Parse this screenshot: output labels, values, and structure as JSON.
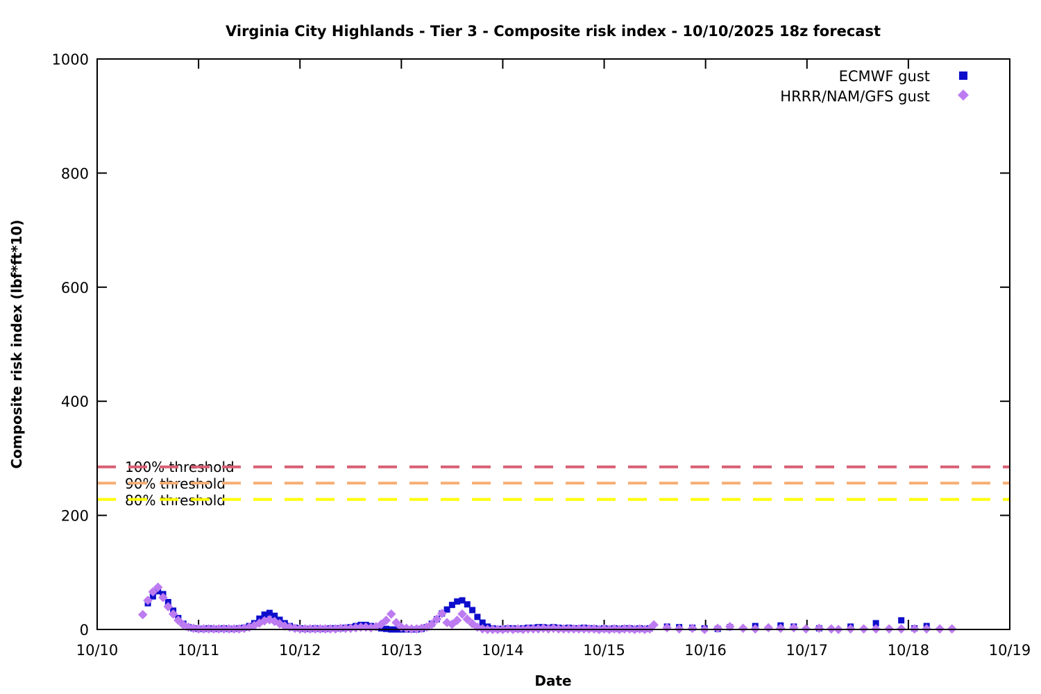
{
  "chart_data": {
    "type": "scatter",
    "title": "Virginia City Highlands - Tier 3 - Composite risk index - 10/10/2025 18z forecast",
    "xlabel": "Date",
    "ylabel": "Composite risk index (lbf*ft*10)",
    "x_tick_labels": [
      "10/10",
      "10/11",
      "10/12",
      "10/13",
      "10/14",
      "10/15",
      "10/16",
      "10/17",
      "10/18",
      "10/19"
    ],
    "y_ticks": [
      0,
      200,
      400,
      600,
      800,
      1000
    ],
    "ylim": [
      0,
      1000
    ],
    "x_range_days": [
      0,
      9
    ],
    "x_unit": "days after 10/10 00z",
    "grid": false,
    "legend_position": "top-right-inside",
    "series": [
      {
        "name": "ECMWF gust",
        "marker": "square",
        "color": "#0d0dcc",
        "points": [
          [
            0.5,
            46
          ],
          [
            0.55,
            58
          ],
          [
            0.6,
            67
          ],
          [
            0.65,
            62
          ],
          [
            0.7,
            48
          ],
          [
            0.75,
            33
          ],
          [
            0.8,
            20
          ],
          [
            0.85,
            10
          ],
          [
            0.9,
            4
          ],
          [
            0.95,
            2
          ],
          [
            1.0,
            1
          ],
          [
            1.05,
            1
          ],
          [
            1.1,
            2
          ],
          [
            1.15,
            1
          ],
          [
            1.2,
            1
          ],
          [
            1.25,
            2
          ],
          [
            1.3,
            1
          ],
          [
            1.35,
            1
          ],
          [
            1.4,
            2
          ],
          [
            1.45,
            3
          ],
          [
            1.5,
            6
          ],
          [
            1.55,
            11
          ],
          [
            1.6,
            19
          ],
          [
            1.65,
            26
          ],
          [
            1.7,
            29
          ],
          [
            1.75,
            24
          ],
          [
            1.8,
            17
          ],
          [
            1.85,
            11
          ],
          [
            1.9,
            6
          ],
          [
            1.95,
            3
          ],
          [
            2.0,
            2
          ],
          [
            2.05,
            1
          ],
          [
            2.1,
            1
          ],
          [
            2.15,
            2
          ],
          [
            2.2,
            1
          ],
          [
            2.25,
            1
          ],
          [
            2.3,
            2
          ],
          [
            2.35,
            2
          ],
          [
            2.4,
            2
          ],
          [
            2.45,
            3
          ],
          [
            2.5,
            4
          ],
          [
            2.55,
            6
          ],
          [
            2.6,
            8
          ],
          [
            2.65,
            8
          ],
          [
            2.7,
            6
          ],
          [
            2.75,
            4
          ],
          [
            2.8,
            2
          ],
          [
            2.85,
            1
          ],
          [
            2.9,
            0
          ],
          [
            2.95,
            0
          ],
          [
            3.0,
            0
          ],
          [
            3.05,
            0
          ],
          [
            3.1,
            0
          ],
          [
            3.15,
            0
          ],
          [
            3.2,
            1
          ],
          [
            3.25,
            4
          ],
          [
            3.3,
            10
          ],
          [
            3.35,
            18
          ],
          [
            3.4,
            28
          ],
          [
            3.45,
            35
          ],
          [
            3.5,
            43
          ],
          [
            3.55,
            49
          ],
          [
            3.6,
            51
          ],
          [
            3.65,
            44
          ],
          [
            3.7,
            34
          ],
          [
            3.75,
            22
          ],
          [
            3.8,
            12
          ],
          [
            3.85,
            5
          ],
          [
            3.9,
            2
          ],
          [
            3.95,
            1
          ],
          [
            4.0,
            1
          ],
          [
            4.05,
            2
          ],
          [
            4.1,
            2
          ],
          [
            4.15,
            1
          ],
          [
            4.2,
            2
          ],
          [
            4.25,
            3
          ],
          [
            4.3,
            3
          ],
          [
            4.35,
            4
          ],
          [
            4.4,
            4
          ],
          [
            4.45,
            3
          ],
          [
            4.5,
            4
          ],
          [
            4.55,
            3
          ],
          [
            4.6,
            2
          ],
          [
            4.65,
            3
          ],
          [
            4.7,
            2
          ],
          [
            4.75,
            2
          ],
          [
            4.8,
            3
          ],
          [
            4.85,
            2
          ],
          [
            4.9,
            2
          ],
          [
            4.95,
            1
          ],
          [
            5.0,
            2
          ],
          [
            5.05,
            1
          ],
          [
            5.1,
            2
          ],
          [
            5.15,
            1
          ],
          [
            5.2,
            2
          ],
          [
            5.25,
            2
          ],
          [
            5.3,
            1
          ],
          [
            5.35,
            2
          ],
          [
            5.4,
            1
          ],
          [
            5.45,
            2
          ],
          [
            5.62,
            5
          ],
          [
            5.74,
            4
          ],
          [
            5.87,
            3
          ],
          [
            5.99,
            2
          ],
          [
            6.12,
            1
          ],
          [
            6.24,
            4
          ],
          [
            6.49,
            6
          ],
          [
            6.74,
            7
          ],
          [
            6.87,
            5
          ],
          [
            7.12,
            2
          ],
          [
            7.43,
            5
          ],
          [
            7.68,
            11
          ],
          [
            7.93,
            16
          ],
          [
            8.06,
            2
          ],
          [
            8.18,
            6
          ]
        ]
      },
      {
        "name": "HRRR/NAM/GFS gust",
        "marker": "diamond",
        "color": "#bd7bf1",
        "points": [
          [
            0.45,
            26
          ],
          [
            0.5,
            51
          ],
          [
            0.55,
            66
          ],
          [
            0.6,
            74
          ],
          [
            0.65,
            56
          ],
          [
            0.7,
            40
          ],
          [
            0.75,
            27
          ],
          [
            0.8,
            16
          ],
          [
            0.85,
            8
          ],
          [
            0.9,
            4
          ],
          [
            0.95,
            2
          ],
          [
            1.0,
            1
          ],
          [
            1.05,
            1
          ],
          [
            1.1,
            1
          ],
          [
            1.15,
            1
          ],
          [
            1.2,
            1
          ],
          [
            1.25,
            1
          ],
          [
            1.3,
            1
          ],
          [
            1.35,
            1
          ],
          [
            1.4,
            1
          ],
          [
            1.45,
            2
          ],
          [
            1.5,
            4
          ],
          [
            1.55,
            7
          ],
          [
            1.6,
            11
          ],
          [
            1.65,
            15
          ],
          [
            1.7,
            17
          ],
          [
            1.75,
            14
          ],
          [
            1.8,
            10
          ],
          [
            1.85,
            6
          ],
          [
            1.9,
            4
          ],
          [
            1.95,
            2
          ],
          [
            2.0,
            1
          ],
          [
            2.05,
            1
          ],
          [
            2.1,
            1
          ],
          [
            2.15,
            1
          ],
          [
            2.2,
            1
          ],
          [
            2.25,
            1
          ],
          [
            2.3,
            1
          ],
          [
            2.35,
            1
          ],
          [
            2.4,
            2
          ],
          [
            2.45,
            2
          ],
          [
            2.5,
            2
          ],
          [
            2.55,
            3
          ],
          [
            2.6,
            4
          ],
          [
            2.65,
            4
          ],
          [
            2.7,
            3
          ],
          [
            2.75,
            5
          ],
          [
            2.8,
            9
          ],
          [
            2.85,
            16
          ],
          [
            2.9,
            27
          ],
          [
            2.95,
            12
          ],
          [
            3.0,
            4
          ],
          [
            3.05,
            2
          ],
          [
            3.1,
            1
          ],
          [
            3.15,
            1
          ],
          [
            3.2,
            2
          ],
          [
            3.25,
            4
          ],
          [
            3.3,
            9
          ],
          [
            3.35,
            18
          ],
          [
            3.4,
            28
          ],
          [
            3.45,
            12
          ],
          [
            3.5,
            9
          ],
          [
            3.55,
            16
          ],
          [
            3.6,
            27
          ],
          [
            3.65,
            18
          ],
          [
            3.7,
            10
          ],
          [
            3.75,
            4
          ],
          [
            3.8,
            1
          ],
          [
            3.85,
            0
          ],
          [
            3.9,
            0
          ],
          [
            3.95,
            0
          ],
          [
            4.0,
            0
          ],
          [
            4.05,
            1
          ],
          [
            4.1,
            0
          ],
          [
            4.15,
            1
          ],
          [
            4.2,
            0
          ],
          [
            4.25,
            1
          ],
          [
            4.3,
            1
          ],
          [
            4.35,
            1
          ],
          [
            4.4,
            2
          ],
          [
            4.45,
            1
          ],
          [
            4.5,
            2
          ],
          [
            4.55,
            1
          ],
          [
            4.6,
            1
          ],
          [
            4.65,
            1
          ],
          [
            4.7,
            1
          ],
          [
            4.75,
            1
          ],
          [
            4.8,
            1
          ],
          [
            4.85,
            1
          ],
          [
            4.9,
            1
          ],
          [
            4.95,
            0
          ],
          [
            5.0,
            1
          ],
          [
            5.05,
            0
          ],
          [
            5.1,
            1
          ],
          [
            5.15,
            0
          ],
          [
            5.2,
            1
          ],
          [
            5.25,
            1
          ],
          [
            5.3,
            0
          ],
          [
            5.35,
            1
          ],
          [
            5.4,
            0
          ],
          [
            5.45,
            1
          ],
          [
            5.49,
            8
          ],
          [
            5.62,
            3
          ],
          [
            5.74,
            1
          ],
          [
            5.87,
            2
          ],
          [
            5.99,
            0
          ],
          [
            6.12,
            2
          ],
          [
            6.24,
            5
          ],
          [
            6.37,
            2
          ],
          [
            6.49,
            1
          ],
          [
            6.62,
            3
          ],
          [
            6.74,
            2
          ],
          [
            6.87,
            3
          ],
          [
            6.99,
            1
          ],
          [
            7.12,
            2
          ],
          [
            7.24,
            1
          ],
          [
            7.31,
            0
          ],
          [
            7.43,
            1
          ],
          [
            7.56,
            1
          ],
          [
            7.68,
            1
          ],
          [
            7.81,
            1
          ],
          [
            7.93,
            1
          ],
          [
            8.06,
            1
          ],
          [
            8.18,
            1
          ],
          [
            8.31,
            1
          ],
          [
            8.43,
            1
          ]
        ]
      }
    ],
    "thresholds": [
      {
        "label": "100% threshold",
        "value": 285,
        "color": "#d95f73"
      },
      {
        "label": "90% threshold",
        "value": 256.5,
        "color": "#f7ae74"
      },
      {
        "label": "80% threshold",
        "value": 228,
        "color": "#ffff00"
      }
    ]
  }
}
